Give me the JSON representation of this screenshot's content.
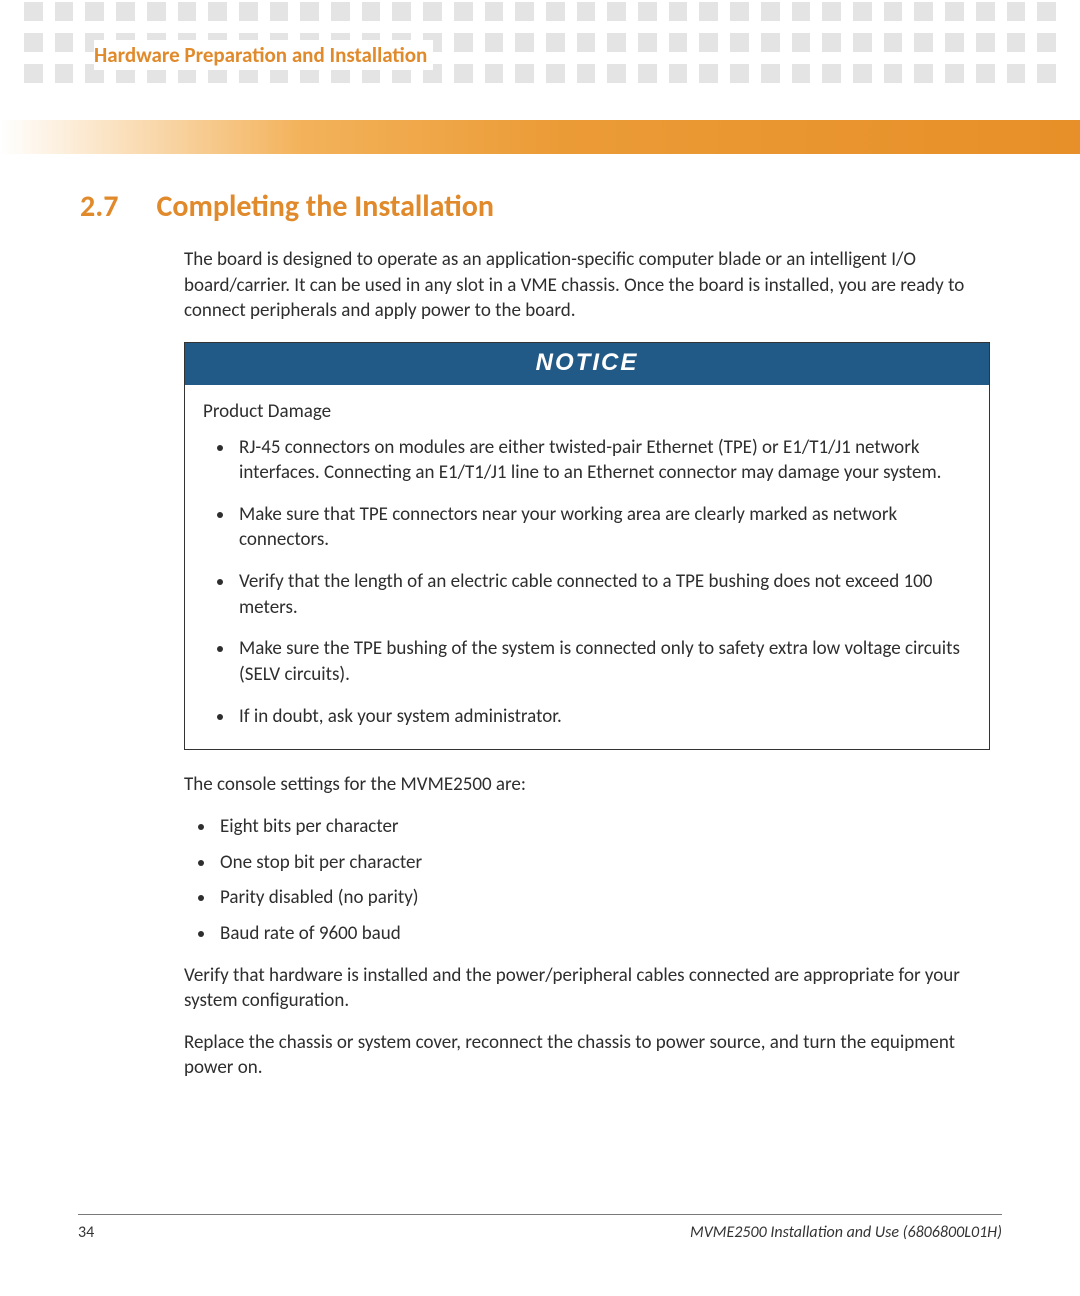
{
  "header": {
    "chapter_title": "Hardware Preparation and Installation",
    "tile_color": "#e4e4e4",
    "bar_gradient_start": "#ffffff",
    "bar_gradient_end": "#e78f28",
    "accent_color": "#e08a2c"
  },
  "section": {
    "number": "2.7",
    "title": "Completing the Installation"
  },
  "intro_paragraph": "The board is designed to operate as an application-specific computer blade or an intelligent I/O board/carrier. It can be used in any slot in a VME chassis. Once the board is installed, you are ready to connect peripherals and apply power to the board.",
  "notice": {
    "label": "NOTICE",
    "header_bg": "#225a87",
    "header_fg": "#ffffff",
    "border_color": "#333333",
    "subtitle": "Product Damage",
    "items": [
      "RJ-45 connectors on modules are either twisted-pair Ethernet (TPE) or E1/T1/J1 network interfaces. Connecting an E1/T1/J1 line to an Ethernet connector may damage your system.",
      "Make sure that TPE connectors near your working area are clearly marked as network connectors.",
      "Verify that the length of an electric cable connected to a TPE bushing does not exceed 100 meters.",
      "Make sure the TPE bushing of the system is connected only to safety extra low voltage circuits (SELV circuits).",
      "If in doubt, ask your system administrator."
    ]
  },
  "console": {
    "lead": "The console settings for the MVME2500 are:",
    "items": [
      "Eight bits per character",
      "One stop bit per character",
      "Parity disabled (no parity)",
      "Baud rate of 9600 baud"
    ]
  },
  "para_verify": "Verify that hardware is installed and the power/peripheral cables connected are appropriate for your system configuration.",
  "para_replace": "Replace the chassis or system cover, reconnect the chassis to power source, and turn the equipment power on.",
  "footer": {
    "page_number": "34",
    "doc_title": "MVME2500 Installation and Use (6806800L01H)"
  }
}
